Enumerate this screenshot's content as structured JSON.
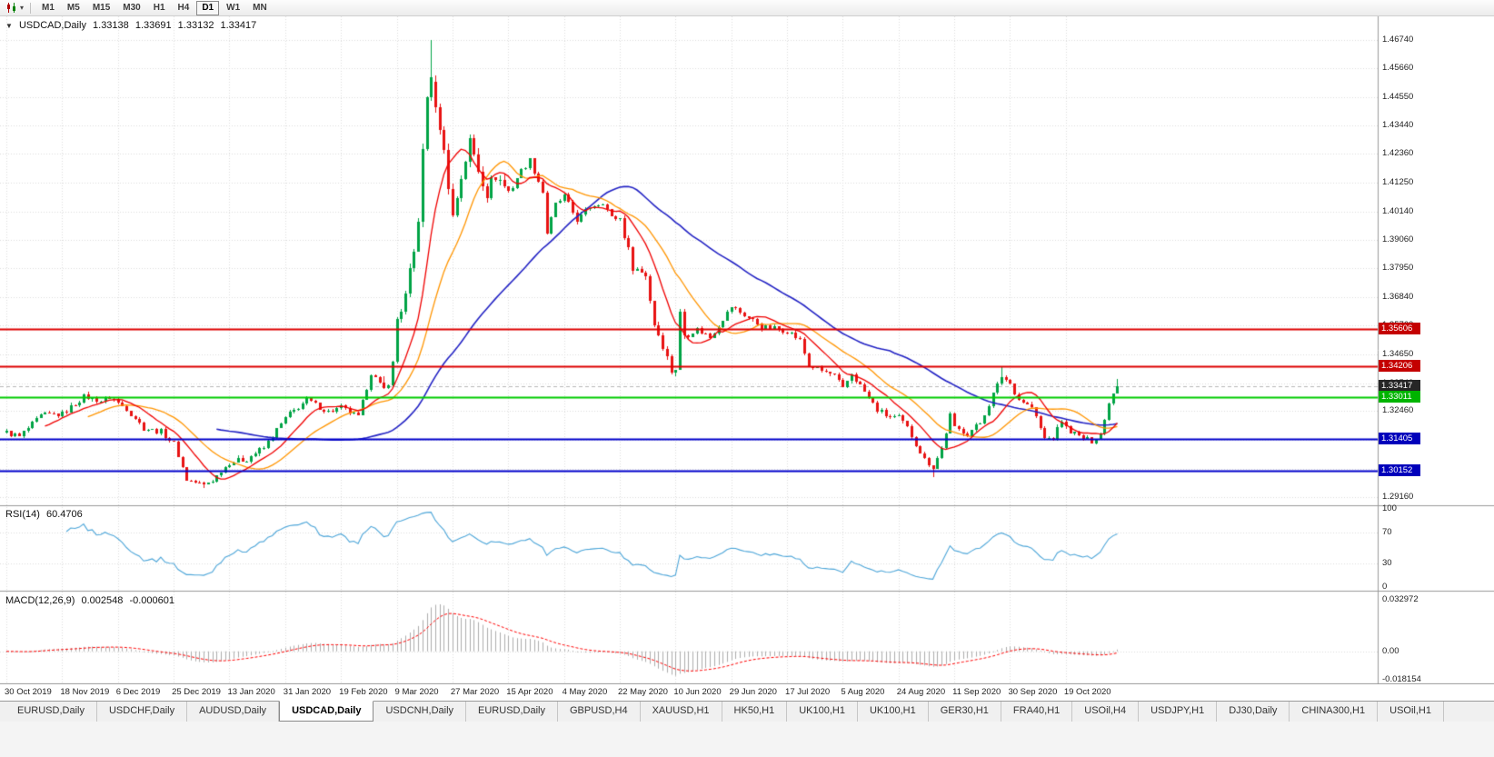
{
  "icons": {
    "collapse": "▼",
    "dropdown": "▾",
    "chart_type": "candlestick-chart-icon"
  },
  "toolbar": {
    "timeframes": [
      "M1",
      "M5",
      "M15",
      "M30",
      "H1",
      "H4",
      "D1",
      "W1",
      "MN"
    ],
    "active": "D1"
  },
  "chart_header": {
    "symbol": "USDCAD,Daily",
    "open": "1.33138",
    "high": "1.33691",
    "low": "1.33132",
    "close": "1.33417"
  },
  "indicators": {
    "rsi": {
      "label": "RSI(14)",
      "value": "60.4706",
      "period": 14,
      "scale_labels": [
        "100",
        "70",
        "30",
        "0"
      ],
      "scale_values": [
        100,
        70,
        30,
        0
      ],
      "level_lines": [
        70,
        30
      ]
    },
    "macd": {
      "label": "MACD(12,26,9)",
      "main_value": "0.002548",
      "signal_value": "-0.000601",
      "params": [
        12,
        26,
        9
      ],
      "scale_labels": [
        "0.032972",
        "0.00",
        "-0.018154"
      ],
      "scale_values": [
        0.032972,
        0,
        -0.018154
      ]
    }
  },
  "chart_data": {
    "type": "candlestick",
    "symbol": "USDCAD",
    "timeframe": "Daily",
    "num_candles": 260,
    "candles_per_label": 13,
    "x_labels": [
      "30 Oct 2019",
      "18 Nov 2019",
      "6 Dec 2019",
      "25 Dec 2019",
      "13 Jan 2020",
      "31 Jan 2020",
      "19 Feb 2020",
      "9 Mar 2020",
      "27 Mar 2020",
      "15 Apr 2020",
      "4 May 2020",
      "22 May 2020",
      "10 Jun 2020",
      "29 Jun 2020",
      "17 Jul 2020",
      "5 Aug 2020",
      "24 Aug 2020",
      "11 Sep 2020",
      "30 Sep 2020",
      "19 Oct 2020"
    ],
    "y_ticks": [
      "1.46740",
      "1.45660",
      "1.44550",
      "1.43440",
      "1.42360",
      "1.41250",
      "1.40140",
      "1.39060",
      "1.37950",
      "1.36840",
      "1.35760",
      "1.34650",
      "1.33540",
      "1.32460",
      "1.31350",
      "1.30240",
      "1.29160"
    ],
    "y_scale": {
      "min": 1.2884,
      "max": 1.4765
    },
    "price_anchors": [
      [
        0,
        1.3165
      ],
      [
        3,
        1.3147
      ],
      [
        8,
        1.3228
      ],
      [
        13,
        1.3236
      ],
      [
        18,
        1.3302
      ],
      [
        22,
        1.3286
      ],
      [
        24,
        1.33
      ],
      [
        28,
        1.3256
      ],
      [
        32,
        1.3182
      ],
      [
        36,
        1.3166
      ],
      [
        39,
        1.3122
      ],
      [
        42,
        1.2982
      ],
      [
        46,
        1.2963
      ],
      [
        48,
        1.2979
      ],
      [
        52,
        1.305
      ],
      [
        56,
        1.3062
      ],
      [
        60,
        1.3105
      ],
      [
        65,
        1.322
      ],
      [
        70,
        1.329
      ],
      [
        75,
        1.3243
      ],
      [
        78,
        1.3258
      ],
      [
        82,
        1.3223
      ],
      [
        85,
        1.3394
      ],
      [
        88,
        1.3323
      ],
      [
        90,
        1.3422
      ],
      [
        91,
        1.36
      ],
      [
        93,
        1.3684
      ],
      [
        95,
        1.3853
      ],
      [
        96,
        1.3994
      ],
      [
        97,
        1.4234
      ],
      [
        98,
        1.4452
      ],
      [
        99,
        1.453
      ],
      [
        100,
        1.4391
      ],
      [
        101,
        1.4351
      ],
      [
        103,
        1.4124
      ],
      [
        104,
        1.3992
      ],
      [
        106,
        1.4151
      ],
      [
        108,
        1.4281
      ],
      [
        110,
        1.4181
      ],
      [
        112,
        1.4091
      ],
      [
        114,
        1.4157
      ],
      [
        117,
        1.4091
      ],
      [
        120,
        1.4171
      ],
      [
        122,
        1.4211
      ],
      [
        125,
        1.4091
      ],
      [
        126,
        1.3931
      ],
      [
        128,
        1.4041
      ],
      [
        130,
        1.4071
      ],
      [
        133,
        1.3981
      ],
      [
        136,
        1.4031
      ],
      [
        139,
        1.4051
      ],
      [
        141,
        1.3991
      ],
      [
        143,
        1.3988
      ],
      [
        146,
        1.3801
      ],
      [
        149,
        1.3771
      ],
      [
        151,
        1.3581
      ],
      [
        153,
        1.3501
      ],
      [
        155,
        1.3401
      ],
      [
        156,
        1.3412
      ],
      [
        157,
        1.3621
      ],
      [
        158,
        1.3541
      ],
      [
        161,
        1.3561
      ],
      [
        164,
        1.3531
      ],
      [
        167,
        1.3601
      ],
      [
        169,
        1.3648
      ],
      [
        172,
        1.3617
      ],
      [
        176,
        1.3571
      ],
      [
        182,
        1.3557
      ],
      [
        185,
        1.3517
      ],
      [
        187,
        1.3421
      ],
      [
        190,
        1.3401
      ],
      [
        193,
        1.3381
      ],
      [
        195,
        1.3331
      ],
      [
        197,
        1.3391
      ],
      [
        200,
        1.3321
      ],
      [
        203,
        1.3251
      ],
      [
        206,
        1.3221
      ],
      [
        208,
        1.3222
      ],
      [
        210,
        1.3181
      ],
      [
        212,
        1.3121
      ],
      [
        214,
        1.3061
      ],
      [
        216,
        1.3031
      ],
      [
        218,
        1.3101
      ],
      [
        220,
        1.3231
      ],
      [
        221,
        1.3181
      ],
      [
        224,
        1.3161
      ],
      [
        227,
        1.3201
      ],
      [
        230,
        1.3311
      ],
      [
        232,
        1.3381
      ],
      [
        234,
        1.3351
      ],
      [
        236,
        1.3291
      ],
      [
        239,
        1.3261
      ],
      [
        242,
        1.3141
      ],
      [
        244,
        1.3143
      ],
      [
        246,
        1.3211
      ],
      [
        247,
        1.3181
      ],
      [
        250,
        1.3147
      ],
      [
        253,
        1.3131
      ],
      [
        255,
        1.3161
      ],
      [
        256,
        1.3211
      ],
      [
        257,
        1.3281
      ],
      [
        258,
        1.3314
      ],
      [
        259,
        1.33417
      ]
    ],
    "volatility": {
      "base": 0.0022,
      "zones": [
        {
          "from": 40,
          "to": 50,
          "v": 0.0013
        },
        {
          "from": 88,
          "to": 118,
          "v": 0.006
        },
        {
          "from": 143,
          "to": 159,
          "v": 0.0034
        },
        {
          "from": 254,
          "to": 259,
          "v": 0.0015
        }
      ]
    },
    "overrides": [
      {
        "i": 46,
        "l": 1.2952
      },
      {
        "i": 99,
        "h": 1.4674,
        "c": 1.453
      },
      {
        "i": 216,
        "l": 1.2994
      },
      {
        "i": 232,
        "h": 1.342
      },
      {
        "i": 258,
        "c": 1.33138
      },
      {
        "i": 259,
        "o": 1.33138,
        "h": 1.33691,
        "l": 1.33132,
        "c": 1.33417
      }
    ],
    "levels": [
      {
        "name": "resistance-line-upper",
        "price": 1.35606,
        "label": "1.35606",
        "line_color": "#dd0000",
        "badge_color": "#c40000",
        "line_width": 2
      },
      {
        "name": "resistance-line-lower",
        "price": 1.34206,
        "label": "1.34206",
        "line_color": "#dd0000",
        "badge_color": "#c40000",
        "line_width": 2
      },
      {
        "name": "current-price-line",
        "price": 1.33417,
        "label": "1.33417",
        "line_color": "#b8b8b8",
        "badge_color": "#262626",
        "line_width": 1,
        "dash": [
          4,
          3
        ]
      },
      {
        "name": "support-line-green",
        "price": 1.33011,
        "label": "1.33011",
        "line_color": "#00cc00",
        "badge_color": "#00b400",
        "line_width": 2
      },
      {
        "name": "support-line-blue-upper",
        "price": 1.31405,
        "label": "1.31405",
        "line_color": "#0000cc",
        "badge_color": "#0000bb",
        "line_width": 2
      },
      {
        "name": "support-line-blue-lower",
        "price": 1.30152,
        "label": "1.30152",
        "line_color": "#0000cc",
        "badge_color": "#0000bb",
        "line_width": 2
      }
    ],
    "ma_periods": {
      "fast": 10,
      "mid": 20,
      "slow": 50
    },
    "colors": {
      "bull": "#00A345",
      "bear": "#E81212",
      "ma_fast": "#F00000",
      "ma_mid": "#FF9500",
      "ma_slow": "#2222C4",
      "grid": "#DCDCDC",
      "rsi": "#4DA6D9",
      "macd_hist": "#ADADAD",
      "macd_signal": "#FF0000",
      "separator": "#9A9A9A"
    }
  },
  "tabs": {
    "items": [
      "EURUSD,Daily",
      "USDCHF,Daily",
      "AUDUSD,Daily",
      "USDCAD,Daily",
      "USDCNH,Daily",
      "EURUSD,Daily",
      "GBPUSD,H4",
      "XAUUSD,H1",
      "HK50,H1",
      "UK100,H1",
      "UK100,H1",
      "GER30,H1",
      "FRA40,H1",
      "USOil,H4",
      "USDJPY,H1",
      "DJ30,Daily",
      "CHINA300,H1",
      "USOil,H1"
    ],
    "active_index": 3
  }
}
